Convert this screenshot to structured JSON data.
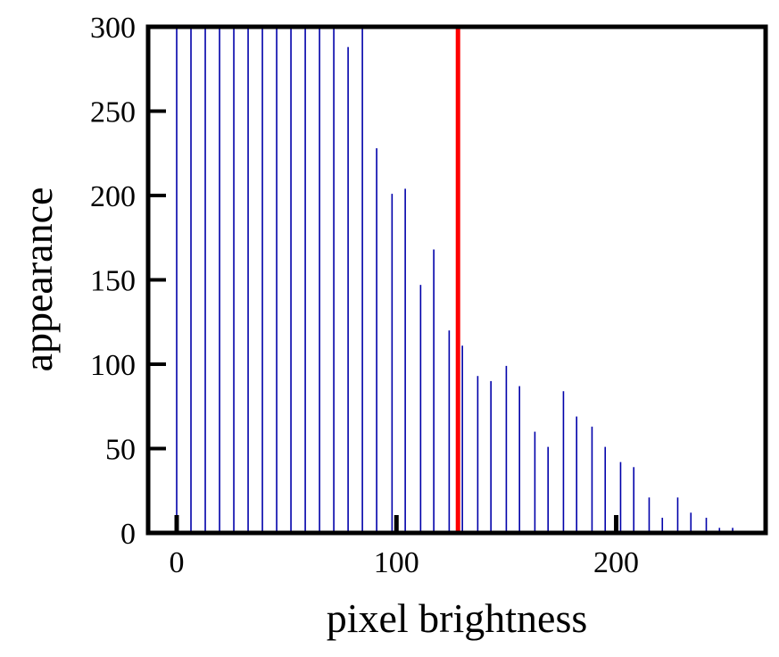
{
  "chart_data": {
    "type": "bar",
    "xlabel": "pixel brightness",
    "ylabel": "appearance",
    "xlim": [
      -13,
      268
    ],
    "ylim": [
      0,
      300
    ],
    "xticks": [
      0,
      100,
      200
    ],
    "yticks": [
      0,
      50,
      100,
      150,
      200,
      250,
      300
    ],
    "grid": false,
    "legend": "none",
    "bar_color": "#0000aa",
    "threshold_color": "#ff0000",
    "threshold_x": 128,
    "series": [
      {
        "x": [
          0,
          6.5,
          13,
          19.5,
          26,
          32.5,
          39,
          45.5,
          52,
          58.5,
          65,
          71.5,
          78,
          84.5,
          91,
          98,
          104,
          111,
          117,
          124,
          130,
          137,
          143,
          150,
          156,
          163,
          169,
          176,
          182,
          189,
          195,
          202,
          208,
          215,
          221,
          228,
          234,
          241,
          247,
          253
        ],
        "values": [
          300,
          300,
          300,
          300,
          300,
          300,
          300,
          300,
          300,
          300,
          300,
          300,
          288,
          300,
          228,
          201,
          204,
          147,
          168,
          120,
          111,
          93,
          90,
          99,
          87,
          60,
          51,
          84,
          69,
          63,
          51,
          42,
          39,
          21,
          9,
          21,
          12,
          9,
          3,
          3
        ]
      }
    ]
  }
}
